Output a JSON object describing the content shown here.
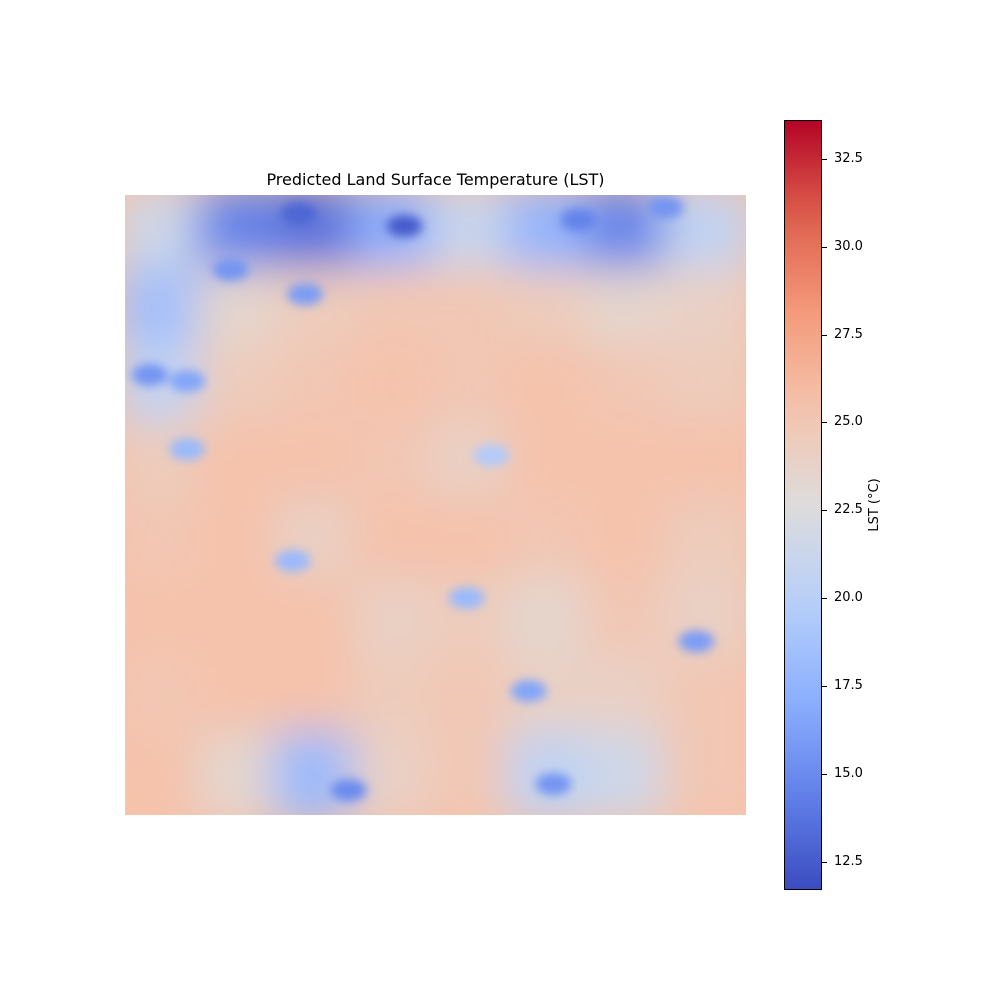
{
  "chart_data": {
    "type": "heatmap",
    "title": "Predicted Land Surface Temperature (LST)",
    "colorbar": {
      "label": "LST (°C)",
      "min": 11.7,
      "max": 33.6,
      "colormap": "coolwarm",
      "ticks": [
        12.5,
        15.0,
        17.5,
        20.0,
        22.5,
        25.0,
        27.5,
        30.0,
        32.5
      ],
      "tick_labels": [
        "12.5",
        "15.0",
        "17.5",
        "20.0",
        "22.5",
        "25.0",
        "27.5",
        "30.0",
        "32.5"
      ]
    },
    "axes_visible": false,
    "base_value": 25.6,
    "grid_rows": 8,
    "grid_cols": 8,
    "grid_values": [
      [
        21.5,
        14.5,
        13.5,
        17.0,
        21.0,
        17.5,
        14.5,
        20.5
      ],
      [
        18.5,
        23.5,
        24.5,
        25.0,
        25.0,
        24.5,
        23.5,
        24.0
      ],
      [
        20.5,
        24.5,
        25.0,
        25.5,
        25.0,
        25.5,
        25.0,
        24.5
      ],
      [
        24.5,
        25.5,
        25.5,
        25.0,
        24.0,
        25.5,
        25.5,
        25.5
      ],
      [
        25.0,
        25.5,
        24.0,
        25.5,
        25.5,
        25.0,
        25.5,
        24.5
      ],
      [
        25.5,
        25.5,
        25.5,
        24.0,
        24.5,
        23.5,
        25.0,
        24.0
      ],
      [
        25.0,
        25.5,
        25.5,
        24.5,
        25.0,
        24.0,
        24.0,
        25.0
      ],
      [
        25.5,
        23.5,
        18.0,
        24.0,
        25.0,
        20.5,
        21.5,
        25.0
      ]
    ],
    "cold_spots": [
      {
        "x": 0.28,
        "y": 0.03,
        "value": 13.0
      },
      {
        "x": 0.45,
        "y": 0.05,
        "value": 12.5
      },
      {
        "x": 0.73,
        "y": 0.04,
        "value": 14.5
      },
      {
        "x": 0.87,
        "y": 0.02,
        "value": 15.5
      },
      {
        "x": 0.17,
        "y": 0.12,
        "value": 15.5
      },
      {
        "x": 0.29,
        "y": 0.16,
        "value": 16.0
      },
      {
        "x": 0.04,
        "y": 0.29,
        "value": 15.5
      },
      {
        "x": 0.1,
        "y": 0.3,
        "value": 16.5
      },
      {
        "x": 0.1,
        "y": 0.41,
        "value": 18.0
      },
      {
        "x": 0.27,
        "y": 0.59,
        "value": 18.0
      },
      {
        "x": 0.59,
        "y": 0.42,
        "value": 19.5
      },
      {
        "x": 0.55,
        "y": 0.65,
        "value": 18.0
      },
      {
        "x": 0.65,
        "y": 0.8,
        "value": 16.5
      },
      {
        "x": 0.92,
        "y": 0.72,
        "value": 16.0
      },
      {
        "x": 0.36,
        "y": 0.96,
        "value": 15.0
      },
      {
        "x": 0.69,
        "y": 0.95,
        "value": 15.5
      }
    ]
  }
}
